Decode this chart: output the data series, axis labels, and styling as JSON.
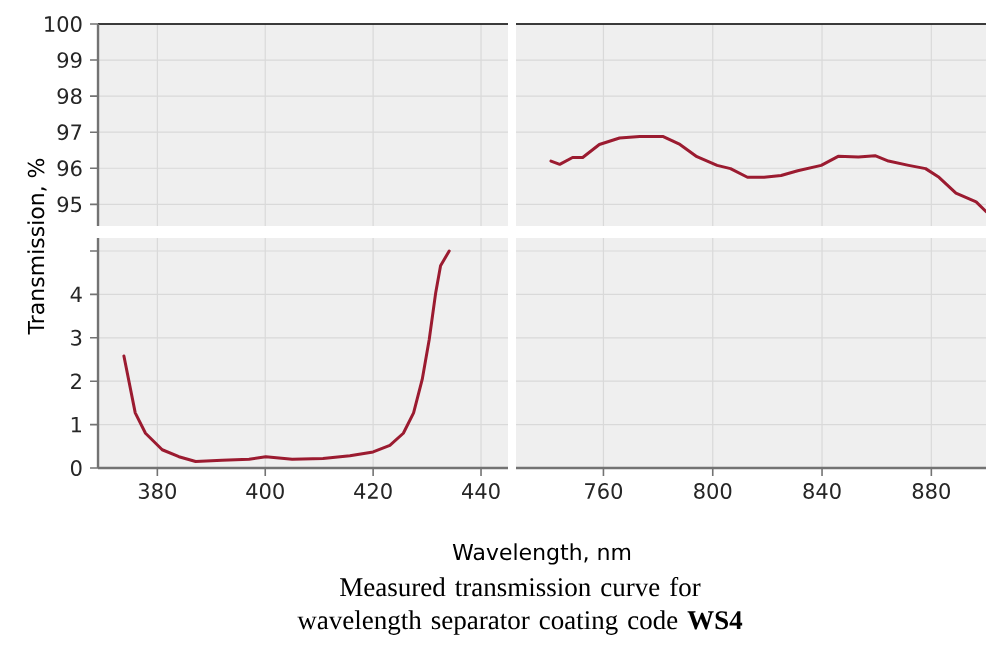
{
  "chart_data": [
    {
      "type": "line",
      "xlim": [
        369,
        445
      ],
      "ylim": [
        94.4,
        100
      ],
      "xticks": [
        380,
        400,
        420,
        440
      ],
      "yticks": [
        95,
        96,
        97,
        98,
        99,
        100
      ],
      "grid": true,
      "tick_labels": "y"
    },
    {
      "type": "line",
      "xlim": [
        728,
        900
      ],
      "ylim": [
        94.4,
        100
      ],
      "xticks": [
        760,
        800,
        840,
        880
      ],
      "yticks": [
        95,
        96,
        97,
        98,
        99,
        100
      ],
      "grid": true,
      "tick_labels": false,
      "x": [
        740.8,
        744,
        748.7,
        752.4,
        758.5,
        765.9,
        773.3,
        781.9,
        788,
        794.2,
        801.6,
        806.5,
        812.7,
        818.8,
        825,
        831.1,
        839.7,
        845.9,
        853.3,
        859.4,
        864.3,
        871.7,
        877.9,
        882.8,
        889,
        896.4,
        900
      ],
      "series": [
        {
          "color": "#9b1b30",
          "values": [
            96.2,
            96.11,
            96.3,
            96.3,
            96.66,
            96.84,
            96.88,
            96.88,
            96.66,
            96.32,
            96.08,
            95.99,
            95.75,
            95.75,
            95.8,
            95.93,
            96.08,
            96.33,
            96.31,
            96.35,
            96.2,
            96.08,
            95.99,
            95.75,
            95.31,
            95.07,
            94.8
          ]
        }
      ]
    },
    {
      "type": "line",
      "xlim": [
        369,
        445
      ],
      "ylim": [
        0,
        5.3
      ],
      "xticks": [
        380,
        400,
        420,
        440
      ],
      "yticks": [
        0,
        1,
        2,
        3,
        4,
        {
          "value": 5,
          "label": null
        }
      ],
      "grid": true,
      "xlabel": "Wavelength, nm",
      "ylabel": "Transmission, %",
      "annotations": [
        "Measured transmission curve for wavelength separator coating code **WS4**"
      ],
      "x": [
        373.8,
        375.9,
        377.8,
        380.9,
        384,
        387.1,
        392,
        397,
        400.1,
        405,
        410.7,
        415.7,
        420,
        423.1,
        425.6,
        427.5,
        429.1,
        430.4,
        431.6,
        432.5,
        434.1
      ],
      "series": [
        {
          "color": "#9b1b30",
          "values": [
            2.58,
            1.27,
            0.8,
            0.42,
            0.26,
            0.15,
            0.18,
            0.2,
            0.26,
            0.2,
            0.22,
            0.28,
            0.37,
            0.52,
            0.8,
            1.27,
            2.04,
            2.96,
            4.04,
            4.66,
            5.0
          ]
        }
      ]
    },
    {
      "type": "line",
      "xlim": [
        728,
        900
      ],
      "ylim": [
        0,
        5.3
      ],
      "xticks": [
        760,
        800,
        840,
        880
      ],
      "yticks": [
        0,
        1,
        2,
        3,
        4,
        5
      ],
      "grid": true,
      "tick_labels": "x"
    }
  ]
}
